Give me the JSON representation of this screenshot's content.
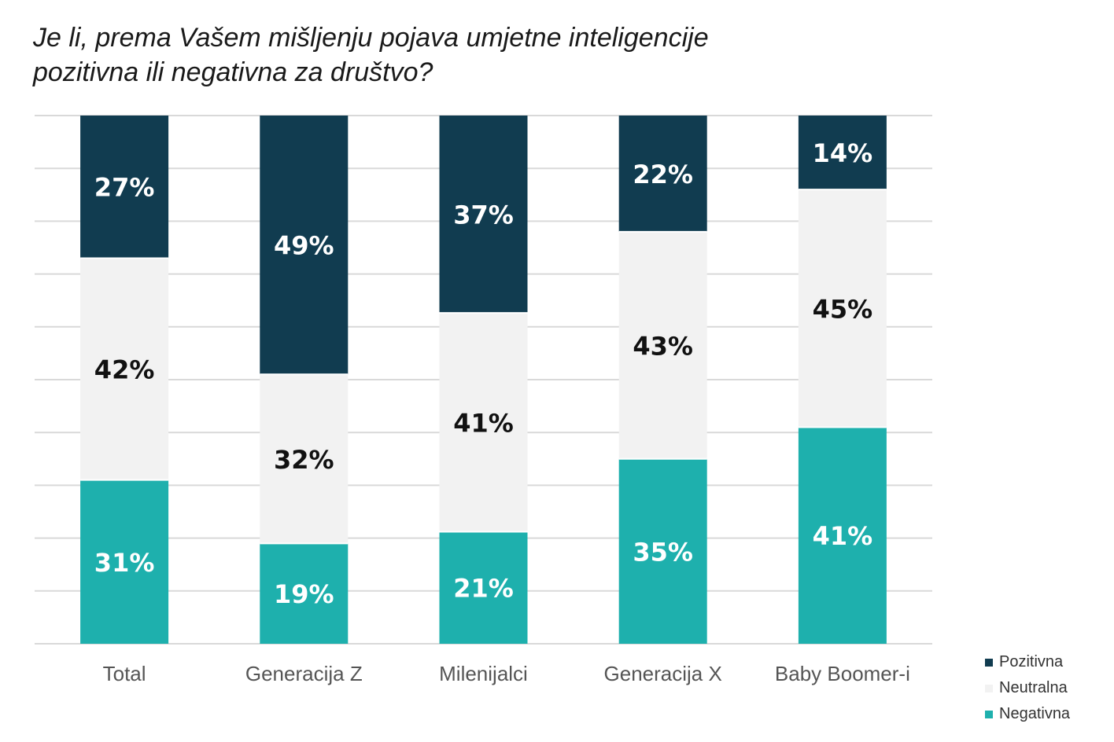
{
  "chart_data": {
    "type": "bar",
    "stacked": true,
    "stack_mode": "percent",
    "title_lines": [
      "Je li, prema Vašem mišljenju pojava umjetne inteligencije",
      "pozitivna ili negativna za društvo?"
    ],
    "categories": [
      "Total",
      "Generacija Z",
      "Milenijalci",
      "Generacija X",
      "Baby Boomer-i"
    ],
    "series": [
      {
        "name": "Negativna",
        "color": "#1eb0ad",
        "label_color": "#ffffff",
        "values": [
          31,
          19,
          21,
          35,
          41
        ]
      },
      {
        "name": "Neutralna",
        "color": "#f2f2f2",
        "label_color": "#111111",
        "values": [
          42,
          32,
          41,
          43,
          45
        ]
      },
      {
        "name": "Pozitivna",
        "color": "#113c50",
        "label_color": "#ffffff",
        "values": [
          27,
          49,
          37,
          22,
          14
        ]
      }
    ],
    "legend_order": [
      "Pozitivna",
      "Neutralna",
      "Negativna"
    ],
    "legend_position": "bottom-right",
    "value_suffix": "%",
    "ylim": [
      0,
      100
    ],
    "grid": true,
    "gridline_count": 11
  }
}
